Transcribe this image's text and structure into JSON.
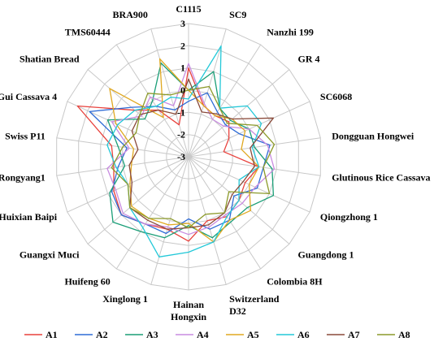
{
  "chart_data": {
    "type": "radar",
    "title": "",
    "categories": [
      "C1115",
      "SC9",
      "Nanzhi 199",
      "GR 4",
      "SC6068",
      "Dongguan Hongwei",
      "Glutinous Rice Cassava",
      "Qiongzhong 1",
      "Guangdong 1",
      "Colombia 8H",
      "Switzerland\nD32",
      "Hainan\nHongxin",
      "Xinglong 1",
      "Huifeng 60",
      "Guangxi Muci",
      "Huixian Baipi",
      "Rongyang1",
      "Swiss P11",
      "Gui Cassava 4",
      "Shatian Bread",
      "TMS60444",
      "BRA900"
    ],
    "rlim": [
      -3,
      3
    ],
    "ticks": [
      -3,
      -2,
      -1,
      0,
      1,
      2,
      3
    ],
    "tick_labels": [
      "-3",
      "-2",
      "-1",
      "0",
      "1",
      "2",
      "3"
    ],
    "grid": true,
    "legend_position": "bottom",
    "series": [
      {
        "name": "A1",
        "color": "#e8413c",
        "values": [
          1.0,
          -0.6,
          -0.8,
          -0.6,
          -1.0,
          -1.4,
          0.2,
          -0.2,
          0.0,
          0.2,
          0.0,
          0.8,
          0.4,
          0.6,
          1.0,
          0.7,
          0.4,
          0.5,
          2.5,
          0.2,
          -0.5,
          -1.5
        ]
      },
      {
        "name": "A2",
        "color": "#2e6bd6",
        "values": [
          -0.5,
          0.0,
          -0.6,
          -0.8,
          -0.5,
          0.7,
          0.4,
          0.4,
          -0.3,
          0.4,
          0.4,
          -0.2,
          0.6,
          0.6,
          1.0,
          0.8,
          0.2,
          -0.2,
          1.9,
          0.4,
          -0.3,
          -0.8
        ]
      },
      {
        "name": "A3",
        "color": "#1a9e77",
        "values": [
          0.0,
          1.0,
          -0.4,
          -0.5,
          0.0,
          0.0,
          0.8,
          1.2,
          0.5,
          0.5,
          0.8,
          0.1,
          0.8,
          1.0,
          1.5,
          0.9,
          -0.1,
          0.2,
          1.0,
          -0.4,
          0.0,
          1.4
        ]
      },
      {
        "name": "A4",
        "color": "#c88be0",
        "values": [
          1.2,
          -0.5,
          -1.0,
          -0.9,
          0.0,
          0.6,
          0.9,
          0.3,
          0.2,
          0.1,
          0.3,
          0.5,
          0.3,
          0.6,
          0.9,
          0.6,
          0.7,
          -0.3,
          0.8,
          -0.2,
          0.2,
          -0.6
        ]
      },
      {
        "name": "A5",
        "color": "#e0a820",
        "values": [
          0.0,
          -0.6,
          -0.8,
          -0.4,
          -0.2,
          -0.6,
          0.2,
          0.0,
          0.7,
          0.4,
          1.0,
          0.0,
          0.2,
          0.3,
          0.4,
          -0.1,
          -0.4,
          -0.5,
          0.6,
          1.7,
          -0.9,
          1.6
        ]
      },
      {
        "name": "A6",
        "color": "#22c8d8",
        "values": [
          -0.4,
          2.2,
          -0.4,
          0.5,
          0.6,
          -0.1,
          0.2,
          -0.5,
          0.0,
          0.2,
          1.0,
          1.3,
          1.7,
          0.8,
          0.5,
          0.0,
          0.3,
          0.7,
          0.5,
          0.2,
          -0.3,
          -0.2
        ]
      },
      {
        "name": "A7",
        "color": "#8a4a3a",
        "values": [
          0.5,
          -0.9,
          -0.7,
          -0.4,
          1.2,
          -0.2,
          0.0,
          -0.3,
          -0.4,
          0.0,
          0.2,
          0.2,
          0.4,
          0.4,
          0.5,
          -0.2,
          -0.3,
          -0.7,
          -0.2,
          -0.1,
          -0.5,
          -1.0
        ]
      },
      {
        "name": "A8",
        "color": "#8c9a2a",
        "values": [
          0.0,
          0.3,
          -0.4,
          -0.7,
          0.4,
          0.9,
          0.4,
          1.0,
          -0.6,
          0.0,
          -0.3,
          0.2,
          -0.1,
          0.3,
          0.5,
          0.0,
          0.5,
          0.0,
          -0.4,
          -0.1,
          0.4,
          -0.1
        ]
      }
    ]
  }
}
